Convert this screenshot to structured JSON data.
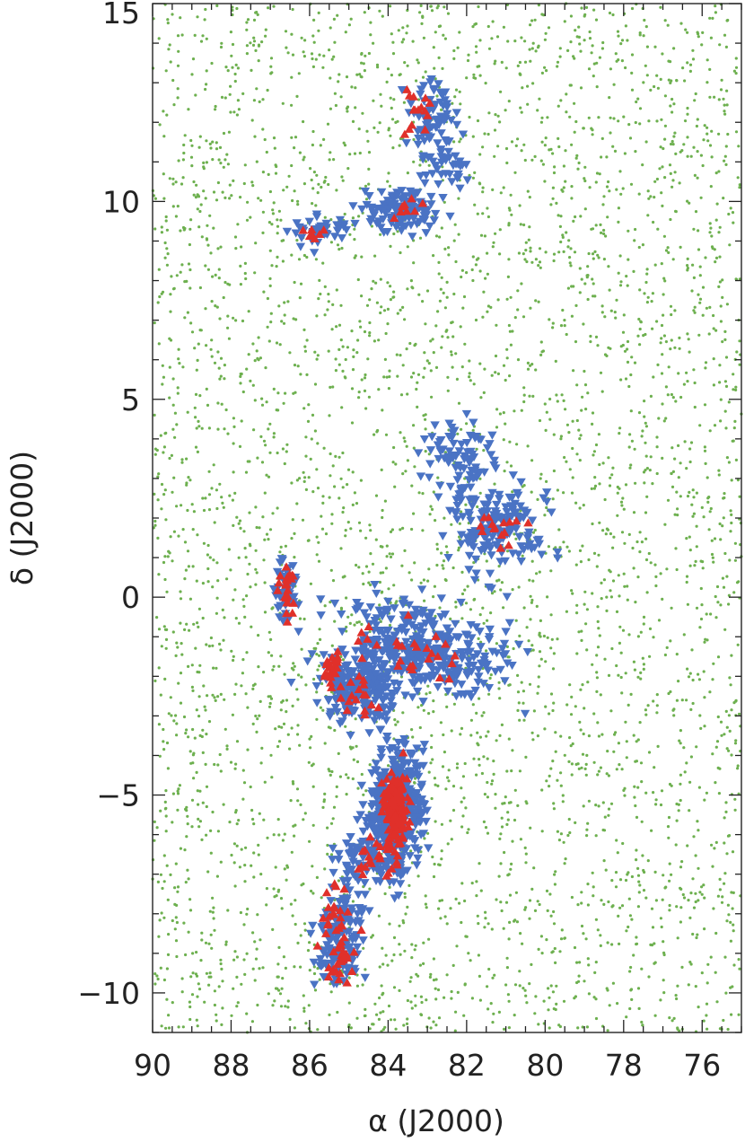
{
  "chart_data": {
    "type": "scatter",
    "title": "",
    "xlabel": "α (J2000)",
    "ylabel": "δ (J2000)",
    "xlim": [
      90,
      75
    ],
    "ylim": [
      -11,
      15
    ],
    "x_ticks": [
      90,
      88,
      86,
      84,
      82,
      80,
      78,
      76
    ],
    "x_tick_labels": [
      "90",
      "88",
      "86",
      "84",
      "82",
      "80",
      "78",
      "76"
    ],
    "y_ticks": [
      15,
      10,
      5,
      0,
      -5,
      -10
    ],
    "y_tick_labels": [
      "15",
      "10",
      "5",
      "0",
      "−5",
      "−10"
    ],
    "grid": false,
    "legend": "none",
    "series": [
      {
        "marker": "dot",
        "color": "#6db04f",
        "description_points": "uniform background field",
        "count": 4200
      },
      {
        "marker": "triangle-down",
        "color": "#4a73c4",
        "clusters": [
          {
            "ra": 83.8,
            "dec": -5.3,
            "n": 420,
            "sra": 0.35,
            "sdec": 0.75
          },
          {
            "ra": 84.3,
            "dec": -6.6,
            "n": 90,
            "sra": 0.45,
            "sdec": 0.3
          },
          {
            "ra": 85.2,
            "dec": -8.2,
            "n": 90,
            "sra": 0.3,
            "sdec": 0.5
          },
          {
            "ra": 85.3,
            "dec": -9.3,
            "n": 50,
            "sra": 0.25,
            "sdec": 0.35
          },
          {
            "ra": 84.8,
            "dec": -2.4,
            "n": 200,
            "sra": 0.45,
            "sdec": 0.4
          },
          {
            "ra": 83.6,
            "dec": -1.2,
            "n": 250,
            "sra": 0.9,
            "sdec": 0.55
          },
          {
            "ra": 82.3,
            "dec": -1.6,
            "n": 120,
            "sra": 0.8,
            "sdec": 0.5
          },
          {
            "ra": 81.2,
            "dec": 1.7,
            "n": 170,
            "sra": 0.55,
            "sdec": 0.6
          },
          {
            "ra": 82.2,
            "dec": 3.4,
            "n": 90,
            "sra": 0.4,
            "sdec": 0.5
          },
          {
            "ra": 86.6,
            "dec": 0.2,
            "n": 50,
            "sra": 0.15,
            "sdec": 0.35
          },
          {
            "ra": 83.7,
            "dec": 9.8,
            "n": 130,
            "sra": 0.5,
            "sdec": 0.25
          },
          {
            "ra": 82.9,
            "dec": 12.2,
            "n": 70,
            "sra": 0.3,
            "sdec": 0.45
          },
          {
            "ra": 82.5,
            "dec": 11.0,
            "n": 40,
            "sra": 0.3,
            "sdec": 0.4
          },
          {
            "ra": 85.8,
            "dec": 9.3,
            "n": 40,
            "sra": 0.4,
            "sdec": 0.2
          }
        ]
      },
      {
        "marker": "triangle-up",
        "color": "#e0302a",
        "clusters": [
          {
            "ra": 83.8,
            "dec": -5.3,
            "n": 160,
            "sra": 0.15,
            "sdec": 0.45
          },
          {
            "ra": 84.2,
            "dec": -6.6,
            "n": 25,
            "sra": 0.35,
            "sdec": 0.25
          },
          {
            "ra": 85.2,
            "dec": -8.3,
            "n": 30,
            "sra": 0.3,
            "sdec": 0.5
          },
          {
            "ra": 85.2,
            "dec": -9.3,
            "n": 20,
            "sra": 0.15,
            "sdec": 0.25
          },
          {
            "ra": 85.4,
            "dec": -1.9,
            "n": 25,
            "sra": 0.12,
            "sdec": 0.2
          },
          {
            "ra": 84.7,
            "dec": -2.5,
            "n": 15,
            "sra": 0.25,
            "sdec": 0.2
          },
          {
            "ra": 83.4,
            "dec": -1.5,
            "n": 30,
            "sra": 0.8,
            "sdec": 0.5
          },
          {
            "ra": 81.3,
            "dec": 1.8,
            "n": 15,
            "sra": 0.4,
            "sdec": 0.3
          },
          {
            "ra": 86.6,
            "dec": 0.2,
            "n": 25,
            "sra": 0.1,
            "sdec": 0.25
          },
          {
            "ra": 83.2,
            "dec": 12.3,
            "n": 15,
            "sra": 0.2,
            "sdec": 0.3
          },
          {
            "ra": 86.0,
            "dec": 9.2,
            "n": 8,
            "sra": 0.15,
            "sdec": 0.1
          },
          {
            "ra": 83.5,
            "dec": 9.8,
            "n": 8,
            "sra": 0.3,
            "sdec": 0.15
          }
        ]
      }
    ]
  }
}
